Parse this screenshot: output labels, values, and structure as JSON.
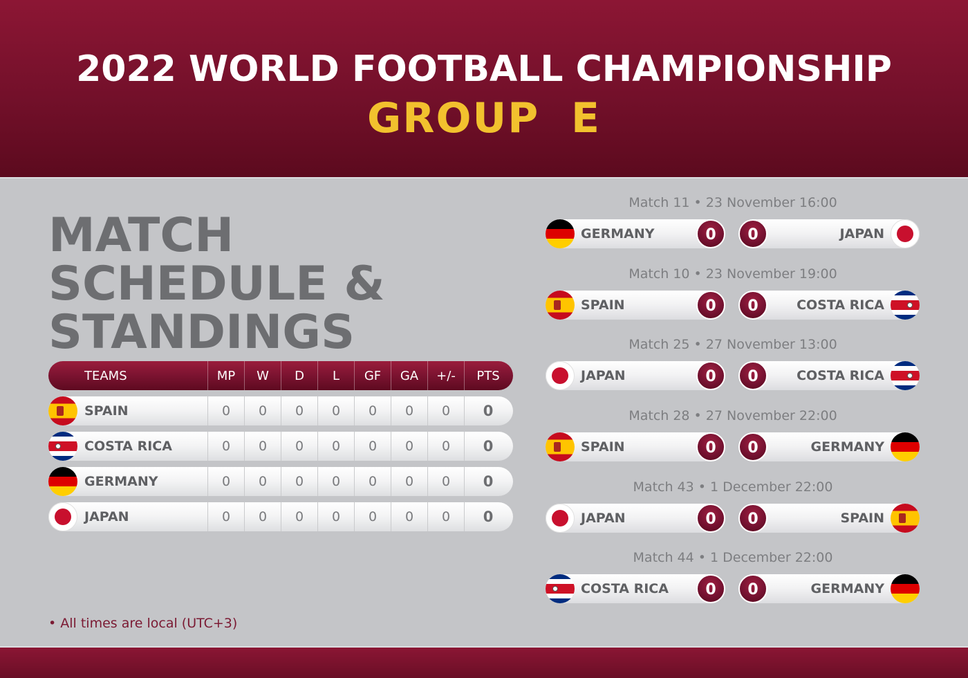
{
  "header": {
    "title": "2022 WORLD FOOTBALL CHAMPIONSHIP",
    "group": "GROUP  E"
  },
  "page_title": "MATCH SCHEDULE & STANDINGS",
  "colors": {
    "brand": "#7b1330",
    "accent": "#f2c12e",
    "background": "#c4c5c8"
  },
  "standings": {
    "headers": [
      "TEAMS",
      "MP",
      "W",
      "D",
      "L",
      "GF",
      "GA",
      "+/-",
      "PTS"
    ],
    "rows": [
      {
        "team": "SPAIN",
        "flag": "spain-flag-icon",
        "mp": "0",
        "w": "0",
        "d": "0",
        "l": "0",
        "gf": "0",
        "ga": "0",
        "diff": "0",
        "pts": "0"
      },
      {
        "team": "COSTA RICA",
        "flag": "costa-rica-flag-icon",
        "mp": "0",
        "w": "0",
        "d": "0",
        "l": "0",
        "gf": "0",
        "ga": "0",
        "diff": "0",
        "pts": "0"
      },
      {
        "team": "GERMANY",
        "flag": "germany-flag-icon",
        "mp": "0",
        "w": "0",
        "d": "0",
        "l": "0",
        "gf": "0",
        "ga": "0",
        "diff": "0",
        "pts": "0"
      },
      {
        "team": "JAPAN",
        "flag": "japan-flag-icon",
        "mp": "0",
        "w": "0",
        "d": "0",
        "l": "0",
        "gf": "0",
        "ga": "0",
        "diff": "0",
        "pts": "0"
      }
    ]
  },
  "matches": [
    {
      "label": "Match 11 • 23 November 16:00",
      "home": "GERMANY",
      "home_score": "0",
      "away_score": "0",
      "away": "JAPAN"
    },
    {
      "label": "Match 10 • 23 November 19:00",
      "home": "SPAIN",
      "home_score": "0",
      "away_score": "0",
      "away": "COSTA RICA"
    },
    {
      "label": "Match 25 • 27 November 13:00",
      "home": "JAPAN",
      "home_score": "0",
      "away_score": "0",
      "away": "COSTA RICA"
    },
    {
      "label": "Match 28 • 27 November 22:00",
      "home": "SPAIN",
      "home_score": "0",
      "away_score": "0",
      "away": "GERMANY"
    },
    {
      "label": "Match 43 • 1 December 22:00",
      "home": "JAPAN",
      "home_score": "0",
      "away_score": "0",
      "away": "SPAIN"
    },
    {
      "label": "Match 44 • 1 December 22:00",
      "home": "COSTA RICA",
      "home_score": "0",
      "away_score": "0",
      "away": "GERMANY"
    }
  ],
  "footnote": "• All times are local (UTC+3)"
}
